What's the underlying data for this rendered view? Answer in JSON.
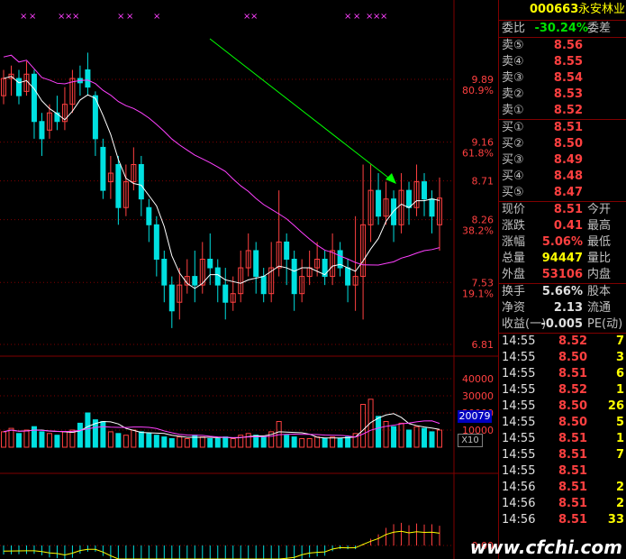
{
  "header": {
    "code": "000663",
    "name": "永安林业"
  },
  "ratio": {
    "label1": "委比",
    "value": "-30.24%",
    "label2": "委差"
  },
  "sell": [
    {
      "label": "卖⑤",
      "price": "8.56"
    },
    {
      "label": "卖④",
      "price": "8.55"
    },
    {
      "label": "卖③",
      "price": "8.54"
    },
    {
      "label": "卖②",
      "price": "8.53"
    },
    {
      "label": "卖①",
      "price": "8.52"
    }
  ],
  "buy": [
    {
      "label": "买①",
      "price": "8.51"
    },
    {
      "label": "买②",
      "price": "8.50"
    },
    {
      "label": "买③",
      "price": "8.49"
    },
    {
      "label": "买④",
      "price": "8.48"
    },
    {
      "label": "买⑤",
      "price": "8.47"
    }
  ],
  "quote": [
    {
      "label": "现价",
      "value": "8.51",
      "label2": "今开",
      "color": "red"
    },
    {
      "label": "涨跌",
      "value": "0.41",
      "label2": "最高",
      "color": "red"
    },
    {
      "label": "涨幅",
      "value": "5.06%",
      "label2": "最低",
      "color": "red"
    },
    {
      "label": "总量",
      "value": "94447",
      "label2": "量比",
      "color": "yel"
    },
    {
      "label": "外盘",
      "value": "53106",
      "label2": "内盘",
      "color": "red"
    }
  ],
  "stats": [
    {
      "label": "换手",
      "value": "5.66%",
      "label2": "股本",
      "color": "wht"
    },
    {
      "label": "净资",
      "value": "2.13",
      "label2": "流通",
      "color": "wht"
    },
    {
      "label": "收益(一)",
      "value": "-0.005",
      "label2": "PE(动)",
      "color": "wht"
    }
  ],
  "ticks": [
    {
      "time": "14:55",
      "price": "8.52",
      "vol": "7"
    },
    {
      "time": "14:55",
      "price": "8.50",
      "vol": "3"
    },
    {
      "time": "14:55",
      "price": "8.51",
      "vol": "6"
    },
    {
      "time": "14:55",
      "price": "8.52",
      "vol": "1"
    },
    {
      "time": "14:55",
      "price": "8.50",
      "vol": "26"
    },
    {
      "time": "14:55",
      "price": "8.50",
      "vol": "5"
    },
    {
      "time": "14:55",
      "price": "8.51",
      "vol": "1"
    },
    {
      "time": "14:55",
      "price": "8.51",
      "vol": "7"
    },
    {
      "time": "14:55",
      "price": "8.51",
      "vol": ""
    },
    {
      "time": "14:56",
      "price": "8.51",
      "vol": "2"
    },
    {
      "time": "14:56",
      "price": "8.51",
      "vol": "2"
    },
    {
      "time": "14:56",
      "price": "8.51",
      "vol": "33"
    }
  ],
  "price_axis": [
    {
      "price": "9.89",
      "pct": "80.9%"
    },
    {
      "price": "9.16",
      "pct": "61.8%"
    },
    {
      "price": "8.71",
      "pct": ""
    },
    {
      "price": "8.26",
      "pct": "38.2%"
    },
    {
      "price": "7.53",
      "pct": "19.1%"
    },
    {
      "price": "6.81",
      "pct": ""
    }
  ],
  "volume_axis": [
    "40000",
    "30000",
    "20000",
    "10000"
  ],
  "volume_badge": "20079",
  "volume_mult": "X10",
  "macd_axis": "0.00",
  "watermark": "www.cfchi.com",
  "colors": {
    "up": "#ff4040",
    "down": "#00e0e0",
    "ma": "#ffffff",
    "ma_long": "#ff40ff",
    "arrow": "#00ff00",
    "grid": "#800000"
  }
}
